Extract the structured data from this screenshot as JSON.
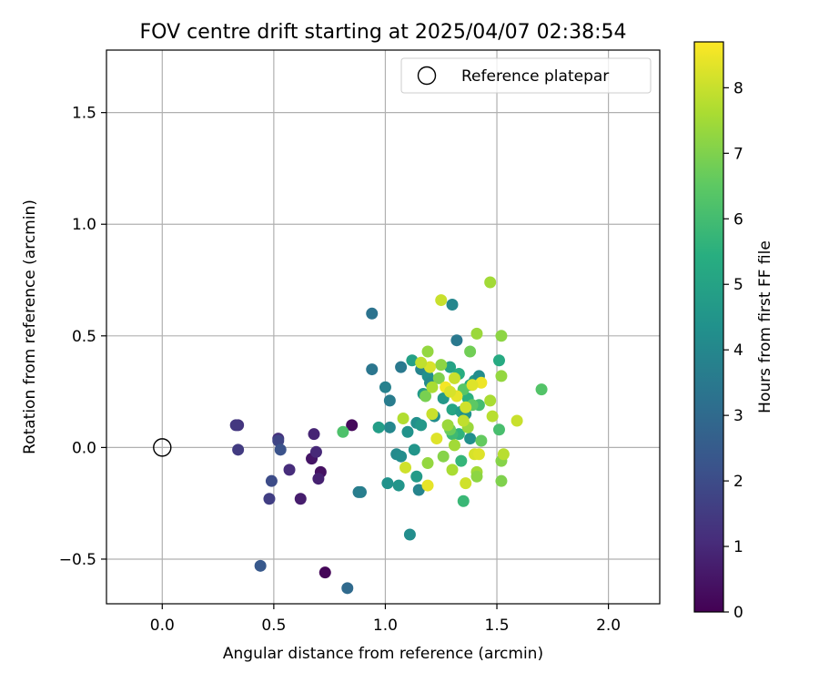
{
  "chart_data": {
    "type": "scatter",
    "title": "FOV centre drift starting at 2025/04/07 02:38:54",
    "xlabel": "Angular distance from reference (arcmin)",
    "ylabel": "Rotation from reference (arcmin)",
    "xlim": [
      -0.25,
      2.23
    ],
    "ylim": [
      -0.7,
      1.78
    ],
    "xticks": [
      0.0,
      0.5,
      1.0,
      1.5,
      2.0
    ],
    "xtick_labels": [
      "0.0",
      "0.5",
      "1.0",
      "1.5",
      "2.0"
    ],
    "yticks": [
      -0.5,
      0.0,
      0.5,
      1.0,
      1.5
    ],
    "ytick_labels": [
      "−0.5",
      "0.0",
      "0.5",
      "1.0",
      "1.5"
    ],
    "grid": true,
    "legend": {
      "position": "top-right",
      "label": "Reference platepar"
    },
    "reference_point": {
      "x": 0.0,
      "y": 0.0
    },
    "colorbar": {
      "label": "Hours from first FF file",
      "range": [
        0,
        8.7
      ],
      "ticks": [
        0,
        1,
        2,
        3,
        4,
        5,
        6,
        7,
        8
      ],
      "tick_labels": [
        "0",
        "1",
        "2",
        "3",
        "4",
        "5",
        "6",
        "7",
        "8"
      ],
      "colormap": "viridis"
    },
    "points": [
      {
        "x": 0.73,
        "y": -0.56,
        "h": 0.1
      },
      {
        "x": 0.85,
        "y": 0.1,
        "h": 0.2
      },
      {
        "x": 0.71,
        "y": -0.11,
        "h": 0.4
      },
      {
        "x": 0.67,
        "y": -0.05,
        "h": 0.5
      },
      {
        "x": 0.62,
        "y": -0.23,
        "h": 0.7
      },
      {
        "x": 0.7,
        "y": -0.14,
        "h": 0.8
      },
      {
        "x": 0.68,
        "y": 0.06,
        "h": 0.9
      },
      {
        "x": 0.69,
        "y": -0.02,
        "h": 1.0
      },
      {
        "x": 0.57,
        "y": -0.1,
        "h": 1.1
      },
      {
        "x": 0.52,
        "y": 0.04,
        "h": 1.2
      },
      {
        "x": 0.34,
        "y": 0.1,
        "h": 1.3
      },
      {
        "x": 0.33,
        "y": 0.1,
        "h": 1.4
      },
      {
        "x": 0.34,
        "y": -0.01,
        "h": 1.5
      },
      {
        "x": 0.48,
        "y": -0.23,
        "h": 1.6
      },
      {
        "x": 0.52,
        "y": 0.03,
        "h": 1.8
      },
      {
        "x": 0.49,
        "y": -0.15,
        "h": 2.0
      },
      {
        "x": 0.53,
        "y": -0.01,
        "h": 2.2
      },
      {
        "x": 0.44,
        "y": -0.53,
        "h": 2.4
      },
      {
        "x": 0.83,
        "y": -0.63,
        "h": 3.0
      },
      {
        "x": 0.94,
        "y": 0.6,
        "h": 3.3
      },
      {
        "x": 0.94,
        "y": 0.35,
        "h": 3.4
      },
      {
        "x": 1.32,
        "y": 0.48,
        "h": 3.5
      },
      {
        "x": 0.88,
        "y": -0.2,
        "h": 3.6
      },
      {
        "x": 0.89,
        "y": -0.2,
        "h": 3.7
      },
      {
        "x": 1.02,
        "y": 0.21,
        "h": 3.6
      },
      {
        "x": 1.07,
        "y": 0.36,
        "h": 3.5
      },
      {
        "x": 1.0,
        "y": 0.27,
        "h": 3.8
      },
      {
        "x": 1.16,
        "y": 0.35,
        "h": 3.9
      },
      {
        "x": 1.3,
        "y": 0.64,
        "h": 4.0
      },
      {
        "x": 1.05,
        "y": -0.03,
        "h": 4.1
      },
      {
        "x": 1.07,
        "y": -0.04,
        "h": 4.2
      },
      {
        "x": 1.02,
        "y": 0.09,
        "h": 4.0
      },
      {
        "x": 1.1,
        "y": 0.07,
        "h": 4.4
      },
      {
        "x": 1.14,
        "y": 0.11,
        "h": 4.3
      },
      {
        "x": 1.13,
        "y": -0.01,
        "h": 4.5
      },
      {
        "x": 1.16,
        "y": 0.1,
        "h": 4.6
      },
      {
        "x": 1.15,
        "y": -0.19,
        "h": 3.9
      },
      {
        "x": 1.14,
        "y": -0.13,
        "h": 4.7
      },
      {
        "x": 1.11,
        "y": -0.39,
        "h": 4.2
      },
      {
        "x": 1.01,
        "y": -0.16,
        "h": 4.4
      },
      {
        "x": 1.06,
        "y": -0.17,
        "h": 4.5
      },
      {
        "x": 0.97,
        "y": 0.09,
        "h": 4.8
      },
      {
        "x": 1.19,
        "y": 0.32,
        "h": 4.3
      },
      {
        "x": 1.2,
        "y": 0.29,
        "h": 4.1
      },
      {
        "x": 1.12,
        "y": 0.39,
        "h": 4.9
      },
      {
        "x": 1.17,
        "y": 0.24,
        "h": 4.7
      },
      {
        "x": 1.22,
        "y": 0.14,
        "h": 4.2
      },
      {
        "x": 1.26,
        "y": 0.22,
        "h": 4.6
      },
      {
        "x": 1.29,
        "y": 0.36,
        "h": 5.0
      },
      {
        "x": 1.3,
        "y": 0.17,
        "h": 5.1
      },
      {
        "x": 1.34,
        "y": 0.16,
        "h": 4.8
      },
      {
        "x": 1.36,
        "y": 0.15,
        "h": 4.4
      },
      {
        "x": 1.38,
        "y": 0.04,
        "h": 4.3
      },
      {
        "x": 1.4,
        "y": 0.3,
        "h": 4.6
      },
      {
        "x": 1.42,
        "y": 0.32,
        "h": 4.2
      },
      {
        "x": 1.38,
        "y": 0.28,
        "h": 5.2
      },
      {
        "x": 1.51,
        "y": 0.39,
        "h": 5.3
      },
      {
        "x": 1.33,
        "y": 0.33,
        "h": 5.4
      },
      {
        "x": 1.37,
        "y": 0.22,
        "h": 5.5
      },
      {
        "x": 1.33,
        "y": 0.06,
        "h": 5.6
      },
      {
        "x": 1.34,
        "y": -0.06,
        "h": 5.7
      },
      {
        "x": 1.35,
        "y": -0.24,
        "h": 5.8
      },
      {
        "x": 1.3,
        "y": 0.06,
        "h": 5.9
      },
      {
        "x": 1.42,
        "y": 0.19,
        "h": 6.0
      },
      {
        "x": 1.51,
        "y": 0.08,
        "h": 6.1
      },
      {
        "x": 0.81,
        "y": 0.07,
        "h": 6.2
      },
      {
        "x": 1.7,
        "y": 0.26,
        "h": 6.3
      },
      {
        "x": 1.35,
        "y": 0.26,
        "h": 6.4
      },
      {
        "x": 1.39,
        "y": 0.19,
        "h": 6.5
      },
      {
        "x": 1.43,
        "y": 0.03,
        "h": 6.6
      },
      {
        "x": 1.29,
        "y": 0.08,
        "h": 6.7
      },
      {
        "x": 1.38,
        "y": 0.43,
        "h": 6.8
      },
      {
        "x": 1.18,
        "y": 0.23,
        "h": 6.9
      },
      {
        "x": 1.24,
        "y": 0.31,
        "h": 7.0
      },
      {
        "x": 1.52,
        "y": -0.06,
        "h": 7.1
      },
      {
        "x": 1.52,
        "y": -0.15,
        "h": 7.0
      },
      {
        "x": 1.52,
        "y": 0.5,
        "h": 7.2
      },
      {
        "x": 1.52,
        "y": 0.32,
        "h": 7.3
      },
      {
        "x": 1.41,
        "y": 0.51,
        "h": 7.4
      },
      {
        "x": 1.47,
        "y": 0.74,
        "h": 7.5
      },
      {
        "x": 1.19,
        "y": 0.43,
        "h": 7.3
      },
      {
        "x": 1.21,
        "y": 0.27,
        "h": 7.6
      },
      {
        "x": 1.25,
        "y": 0.37,
        "h": 7.2
      },
      {
        "x": 1.28,
        "y": 0.1,
        "h": 7.4
      },
      {
        "x": 1.31,
        "y": 0.01,
        "h": 7.5
      },
      {
        "x": 1.26,
        "y": -0.04,
        "h": 7.1
      },
      {
        "x": 1.3,
        "y": -0.1,
        "h": 7.6
      },
      {
        "x": 1.19,
        "y": -0.07,
        "h": 7.3
      },
      {
        "x": 1.08,
        "y": 0.13,
        "h": 7.7
      },
      {
        "x": 1.48,
        "y": 0.14,
        "h": 7.8
      },
      {
        "x": 1.47,
        "y": 0.21,
        "h": 7.6
      },
      {
        "x": 1.37,
        "y": 0.09,
        "h": 7.4
      },
      {
        "x": 1.35,
        "y": 0.12,
        "h": 7.9
      },
      {
        "x": 1.41,
        "y": -0.11,
        "h": 7.5
      },
      {
        "x": 1.41,
        "y": -0.13,
        "h": 7.2
      },
      {
        "x": 1.53,
        "y": -0.03,
        "h": 7.8
      },
      {
        "x": 1.59,
        "y": 0.12,
        "h": 8.0
      },
      {
        "x": 1.4,
        "y": -0.03,
        "h": 8.2
      },
      {
        "x": 1.42,
        "y": -0.03,
        "h": 8.3
      },
      {
        "x": 1.36,
        "y": -0.16,
        "h": 8.1
      },
      {
        "x": 1.19,
        "y": -0.17,
        "h": 8.4
      },
      {
        "x": 1.09,
        "y": -0.09,
        "h": 8.1
      },
      {
        "x": 1.25,
        "y": 0.66,
        "h": 8.0
      },
      {
        "x": 1.2,
        "y": 0.36,
        "h": 8.2
      },
      {
        "x": 1.16,
        "y": 0.38,
        "h": 7.9
      },
      {
        "x": 1.27,
        "y": 0.27,
        "h": 8.6
      },
      {
        "x": 1.32,
        "y": 0.23,
        "h": 8.4
      },
      {
        "x": 1.43,
        "y": 0.29,
        "h": 8.5
      },
      {
        "x": 1.39,
        "y": 0.28,
        "h": 8.3
      },
      {
        "x": 1.36,
        "y": 0.18,
        "h": 8.1
      },
      {
        "x": 1.23,
        "y": 0.04,
        "h": 8.3
      },
      {
        "x": 1.21,
        "y": 0.15,
        "h": 8.0
      },
      {
        "x": 1.29,
        "y": 0.25,
        "h": 8.2
      },
      {
        "x": 1.31,
        "y": 0.31,
        "h": 8.0
      }
    ]
  }
}
